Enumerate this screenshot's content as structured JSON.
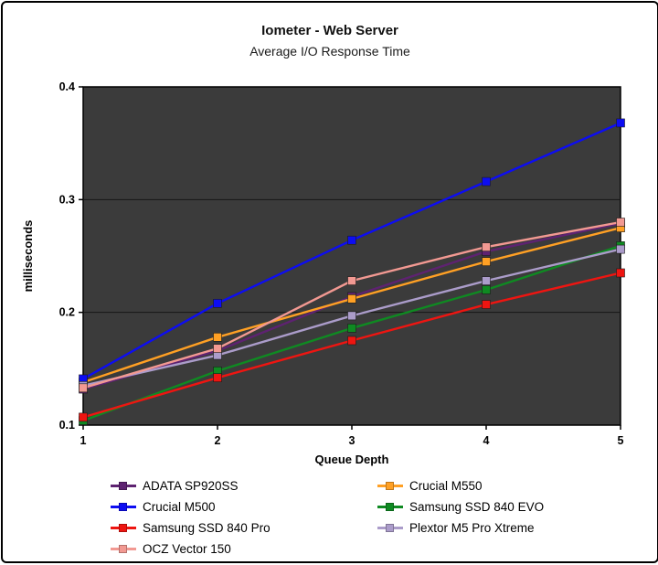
{
  "chart_data": {
    "type": "line",
    "title": "Iometer - Web Server",
    "subtitle": "Average I/O Response Time",
    "xlabel": "Queue Depth",
    "ylabel": "milliseconds",
    "x": [
      "1",
      "2",
      "3",
      "4",
      "5"
    ],
    "ylim": [
      0.1,
      0.4
    ],
    "yticks": [
      0.1,
      0.2,
      0.3,
      0.4
    ],
    "ytick_labels": [
      "0.1",
      "0.2",
      "0.3",
      "0.4"
    ],
    "grid": true,
    "legend_position": "bottom",
    "plot_bg": "#3b3b3b",
    "series": [
      {
        "name": "ADATA SP920SS",
        "color": "#5e2271",
        "values": [
          0.132,
          0.166,
          0.214,
          0.254,
          0.279
        ]
      },
      {
        "name": "Crucial M550",
        "color": "#ffa024",
        "values": [
          0.138,
          0.178,
          0.212,
          0.245,
          0.275
        ]
      },
      {
        "name": "Crucial M500",
        "color": "#0d0df2",
        "values": [
          0.141,
          0.208,
          0.264,
          0.316,
          0.368
        ]
      },
      {
        "name": "Samsung SSD 840 EVO",
        "color": "#0f8a22",
        "values": [
          0.104,
          0.148,
          0.186,
          0.22,
          0.259
        ]
      },
      {
        "name": "Samsung SSD 840 Pro",
        "color": "#ee1511",
        "values": [
          0.107,
          0.142,
          0.175,
          0.207,
          0.235
        ]
      },
      {
        "name": "Plextor M5 Pro Xtreme",
        "color": "#ab9cca",
        "values": [
          0.135,
          0.162,
          0.197,
          0.228,
          0.256
        ]
      },
      {
        "name": "OCZ Vector 150",
        "color": "#f29992",
        "values": [
          0.133,
          0.168,
          0.228,
          0.258,
          0.28
        ]
      }
    ]
  }
}
